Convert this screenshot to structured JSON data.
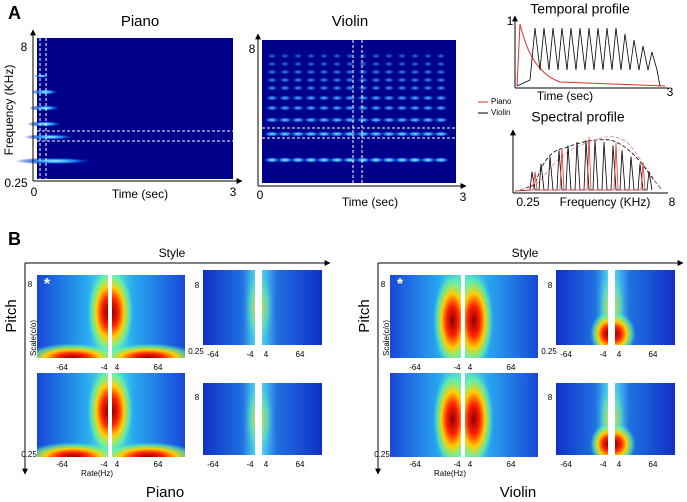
{
  "panel_a": {
    "label": "A",
    "spectrograms": [
      {
        "title": "Piano",
        "y_axis": "Frequency (KHz)",
        "y_top": "8",
        "y_bottom": "0.25",
        "x_left": "0",
        "x_right": "3",
        "x_axis": "Time (sec)"
      },
      {
        "title": "Violin",
        "y_top": "8",
        "x_left": "0",
        "x_right": "3",
        "x_axis": "Time (sec)"
      }
    ],
    "temporal": {
      "title": "Temporal profile",
      "y_top": "1",
      "x_axis": "Time (sec)",
      "x_right": "3"
    },
    "legend": [
      "Piano",
      "Violin"
    ],
    "spectral": {
      "title": "Spectral profile",
      "x_left": "0.25",
      "x_axis": "Frequency (KHz)",
      "x_right": "8"
    }
  },
  "panel_b": {
    "label": "B",
    "groups": [
      {
        "x_axis": "Style",
        "y_axis": "Pitch",
        "instrument": "Piano",
        "marker": "*",
        "scale_label": "Scale(c/o)",
        "rate_label": "Rate(Hz)",
        "scale_ticks": [
          "8",
          "0.25"
        ],
        "rate_ticks": [
          "-64",
          "-4",
          "4",
          "64"
        ]
      },
      {
        "x_axis": "Style",
        "y_axis": "Pitch",
        "instrument": "Violin",
        "marker": "*",
        "scale_label": "Scale(c/o)",
        "rate_label": "Rate(Hz)",
        "scale_ticks": [
          "8",
          "0.25"
        ],
        "rate_ticks": [
          "-64",
          "-4",
          "4",
          "64"
        ]
      }
    ]
  }
}
